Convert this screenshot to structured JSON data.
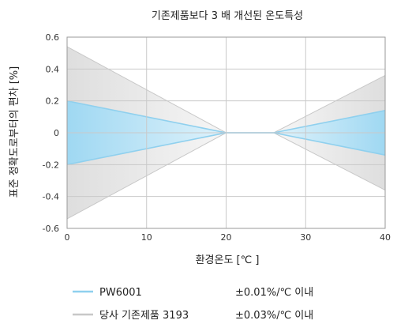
{
  "chart_data": {
    "type": "area",
    "title": "기존제품보다 3 배 개선된 온도특성",
    "xlabel": "환경온도 [℃ ]",
    "ylabel": "표준 정확도로부터의 편차 [%]",
    "xlim": [
      0,
      40
    ],
    "ylim": [
      -0.6,
      0.6
    ],
    "x_ticks": [
      "0",
      "10",
      "20",
      "30",
      "40"
    ],
    "y_ticks": [
      "0.6",
      "0.4",
      "0.2",
      "0",
      "-0.2",
      "-0.4",
      "-0.6"
    ],
    "x_tick_values": [
      0,
      10,
      20,
      30,
      40
    ],
    "y_tick_values": [
      0.6,
      0.4,
      0.2,
      0,
      -0.2,
      -0.4,
      -0.6
    ],
    "grid": true,
    "legend_position": "bottom",
    "series": [
      {
        "name": "당사 기존제품 3193",
        "spec": "±0.03%/℃ 이내",
        "color": "#c8c8c8",
        "fill_color": "#e6e6e6",
        "upper": [
          [
            0,
            0.54
          ],
          [
            20,
            0
          ],
          [
            26,
            0
          ],
          [
            40,
            0.36
          ]
        ],
        "lower": [
          [
            0,
            -0.54
          ],
          [
            20,
            0
          ],
          [
            26,
            0
          ],
          [
            40,
            -0.36
          ]
        ]
      },
      {
        "name": "PW6001",
        "spec": "±0.01%/℃ 이내",
        "color": "#8fd0ee",
        "fill_color": "#a8dcf2",
        "upper": [
          [
            0,
            0.2
          ],
          [
            20,
            0
          ],
          [
            26,
            0
          ],
          [
            40,
            0.14
          ]
        ],
        "lower": [
          [
            0,
            -0.2
          ],
          [
            20,
            0
          ],
          [
            26,
            0
          ],
          [
            40,
            -0.14
          ]
        ]
      }
    ]
  }
}
